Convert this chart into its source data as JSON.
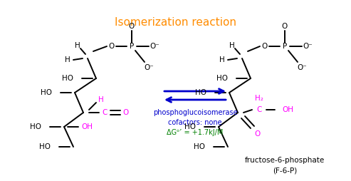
{
  "title": "Isomerization reaction",
  "title_color": "#FF8C00",
  "title_fontsize": 11,
  "bg_color": "#FFFFFF",
  "arrow_color": "#0000CC",
  "enzyme_text": "phosphoglucoisomerase",
  "enzyme_color": "#0000CC",
  "cofactor_text": "cofactors: none",
  "cofactor_color": "#0000CC",
  "delta_g_text": "ΔGᵒ’ = +1.7kJ/M",
  "delta_g_color": "#008000",
  "product_label": "fructose-6-phosphate\n(F-6-P)",
  "product_label_color": "#000000",
  "magenta": "#FF00FF",
  "black": "#000000",
  "blue": "#0000CC"
}
